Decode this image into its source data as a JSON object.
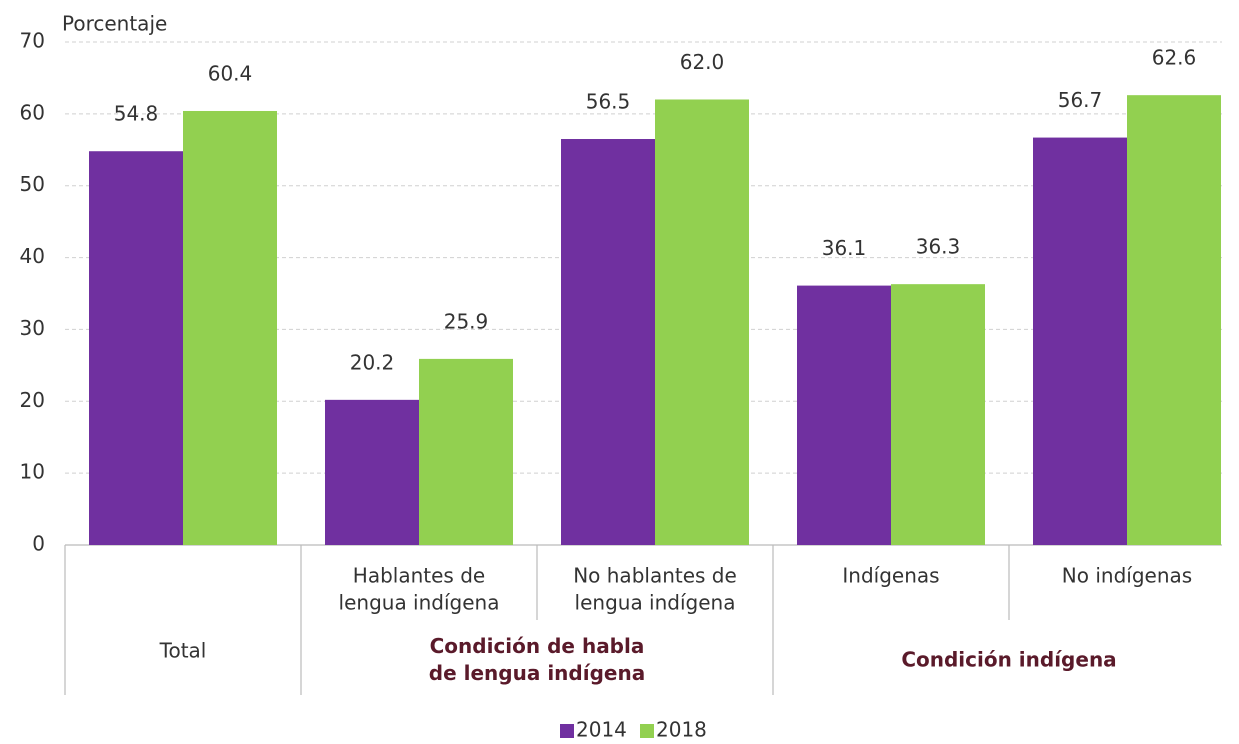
{
  "chart_data": {
    "type": "bar",
    "y_label": "Porcentaje",
    "categories": [
      [
        "Total"
      ],
      [
        "Hablantes de",
        "lengua indígena"
      ],
      [
        "No hablantes de",
        "lengua indígena"
      ],
      [
        "Indígenas"
      ],
      [
        "No indígenas"
      ]
    ],
    "groups": [
      [
        "Condición de habla",
        "de lengua indígena"
      ],
      [
        "Condición indígena"
      ]
    ],
    "series": [
      {
        "name": "2014",
        "color": "#7030a0",
        "values": [
          54.8,
          20.2,
          56.5,
          36.1,
          56.7
        ],
        "value_labels": [
          "54.8",
          "20.2",
          "56.5",
          "36.1",
          "56.7"
        ]
      },
      {
        "name": "2018",
        "color": "#92d050",
        "values": [
          60.4,
          25.9,
          62,
          36.3,
          62.6
        ],
        "value_labels": [
          "60.4",
          "25.9",
          "62.0",
          "36.3",
          "62.6"
        ]
      }
    ],
    "ylim": [
      0,
      70
    ],
    "yticks": [
      0,
      10,
      20,
      30,
      40,
      50,
      60,
      70
    ],
    "grid": true,
    "legend": "bottom"
  }
}
